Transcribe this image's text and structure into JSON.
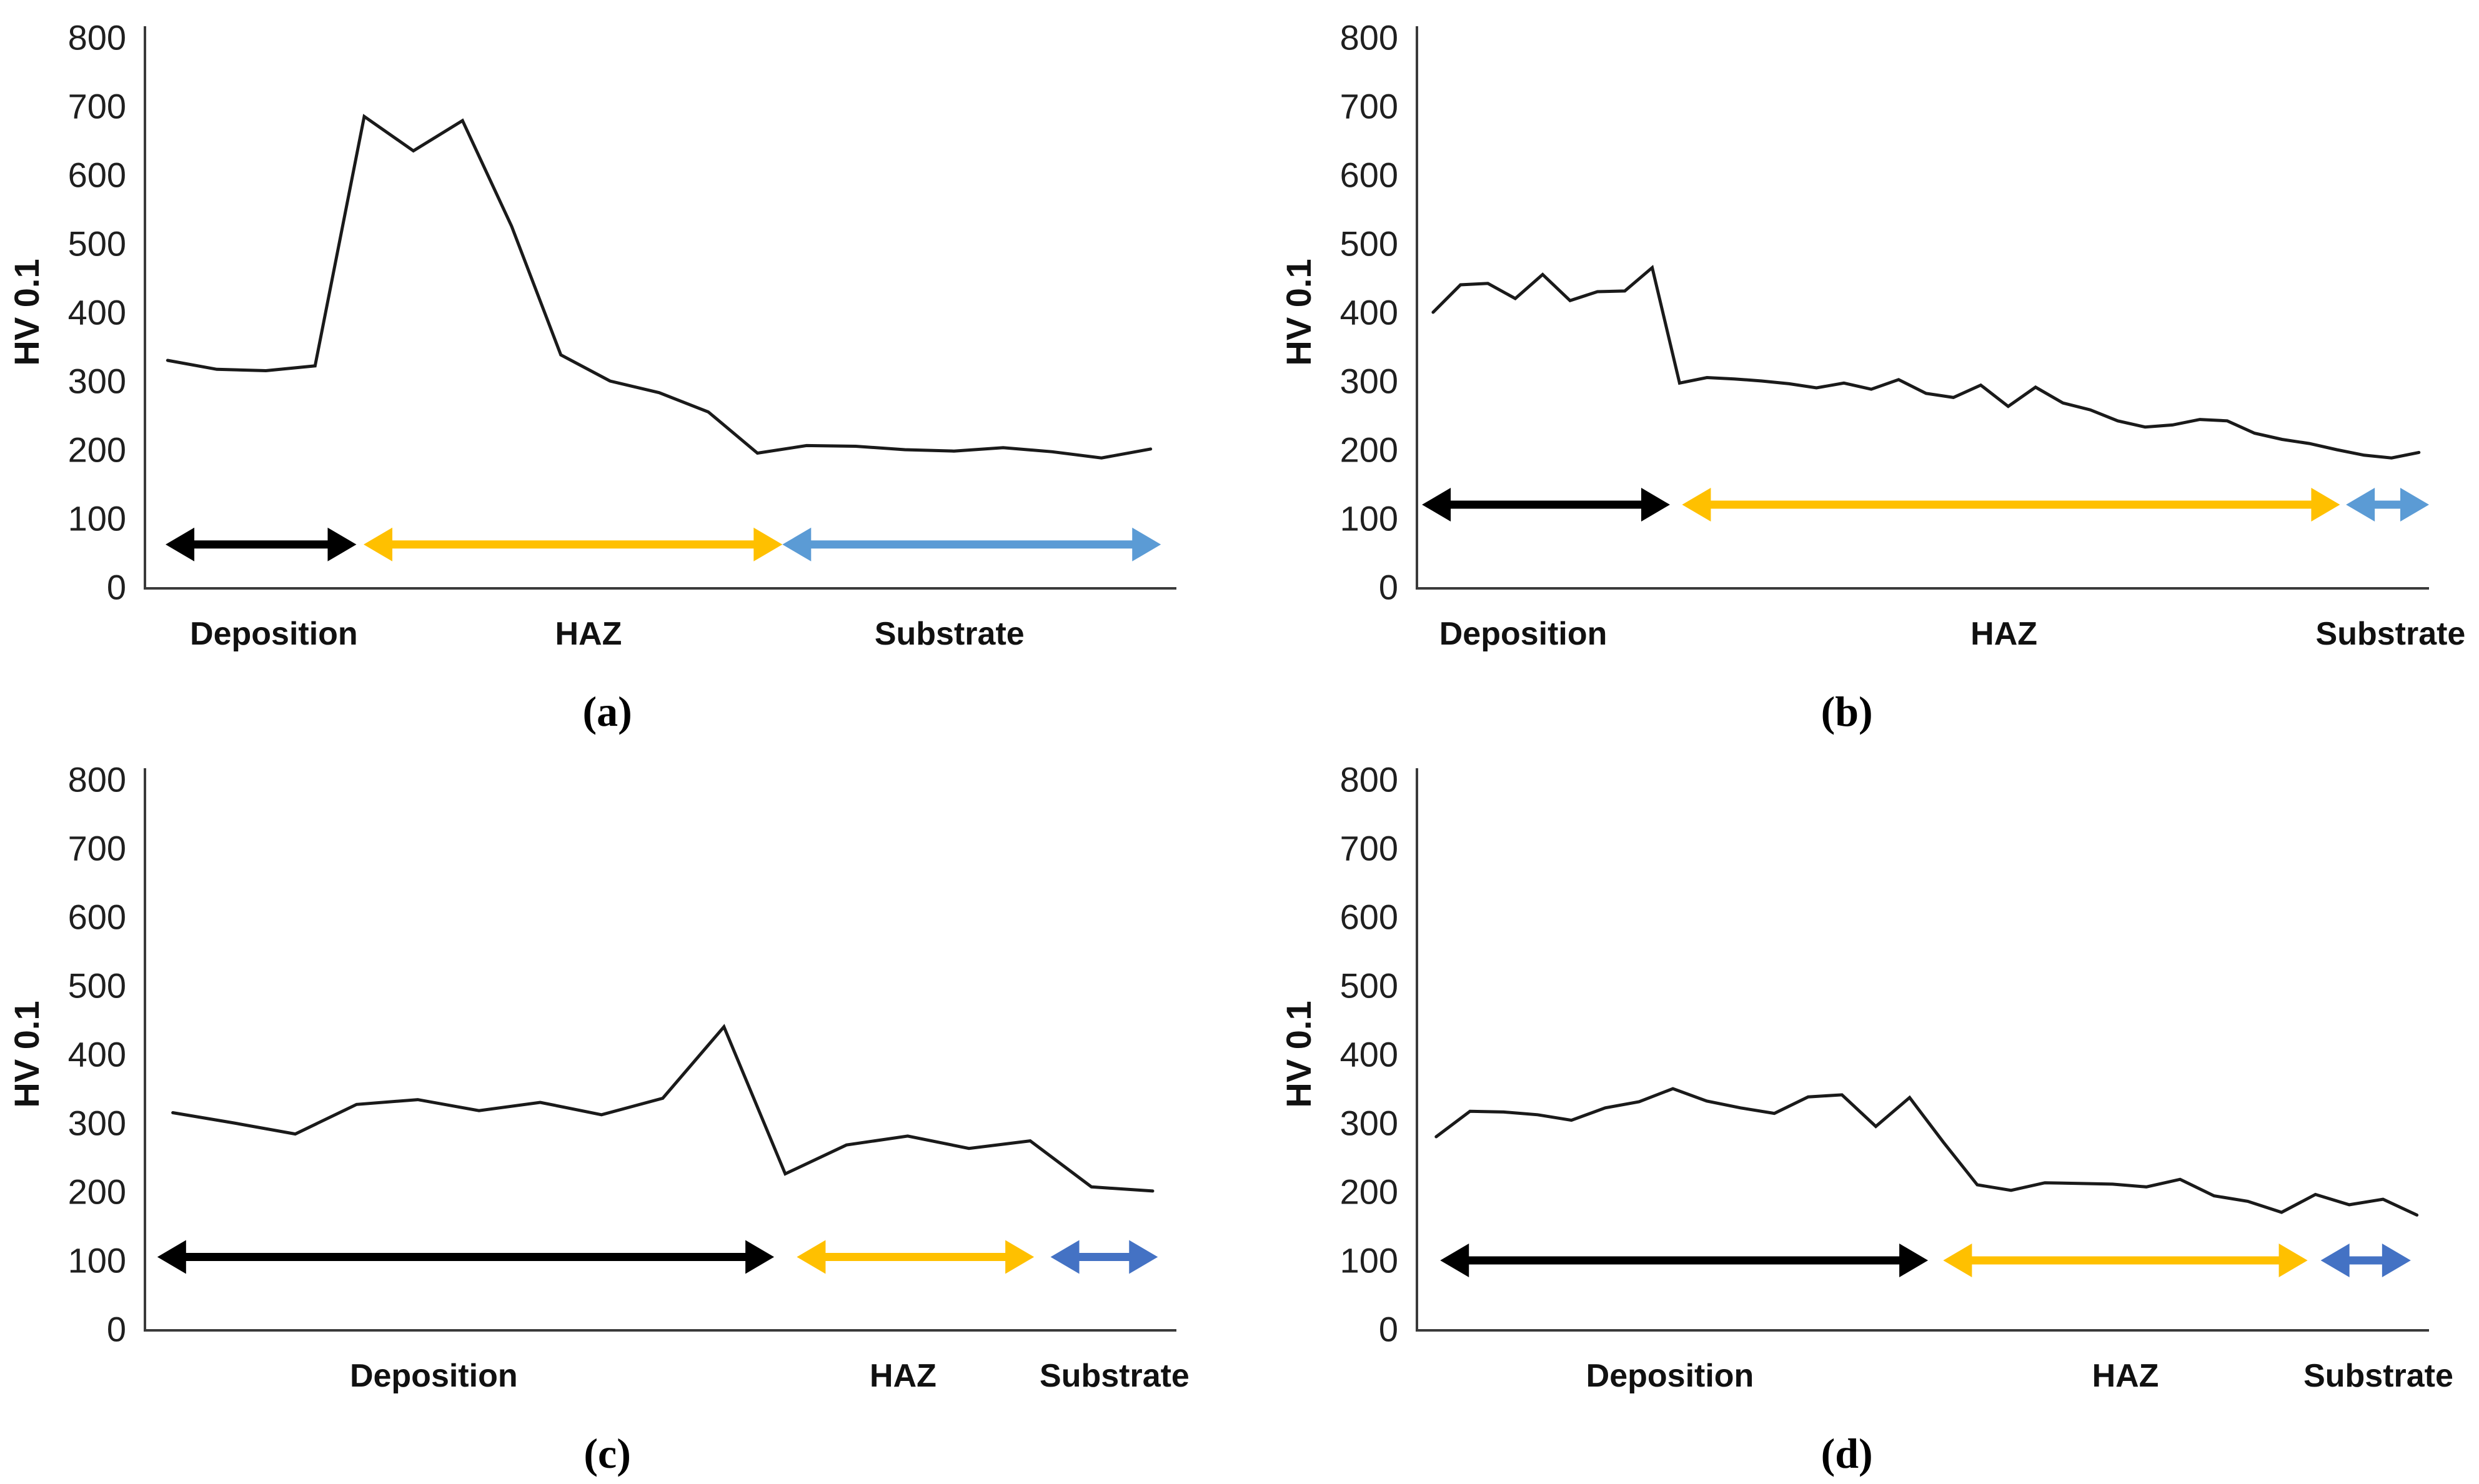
{
  "figure": {
    "background": "#FFFFFF",
    "ylabel": "HV 0.1",
    "zone_label_deposition": "Deposition",
    "zone_label_haz": "HAZ",
    "zone_label_substrate": "Substrate"
  },
  "chart_data": [
    {
      "panel_label": "(a)",
      "type": "line",
      "ylabel": "HV 0.1",
      "ylim": [
        0,
        800
      ],
      "yticks": [
        0,
        100,
        200,
        300,
        400,
        500,
        600,
        700,
        800
      ],
      "grid": false,
      "legend": "none",
      "line_color": "#1a1a1a",
      "x_start": 0.022,
      "x_end": 0.975,
      "values": [
        330,
        317,
        315,
        322,
        685,
        635,
        679,
        525,
        338,
        300,
        283,
        255,
        195,
        206,
        205,
        200,
        198,
        203,
        197,
        188,
        201
      ],
      "arrow_y": 62,
      "zones": [
        {
          "name": "deposition",
          "label": "Deposition",
          "color": "#000000",
          "from": 0.02,
          "to": 0.205,
          "label_at": 0.125
        },
        {
          "name": "haz",
          "label": "HAZ",
          "color": "#FFC000",
          "from": 0.212,
          "to": 0.618,
          "label_at": 0.43
        },
        {
          "name": "substrate",
          "label": "Substrate",
          "color": "#5B9BD5",
          "from": 0.618,
          "to": 0.985,
          "label_at": 0.78
        }
      ]
    },
    {
      "panel_label": "(b)",
      "type": "line",
      "ylabel": "HV 0.1",
      "ylim": [
        0,
        800
      ],
      "yticks": [
        0,
        100,
        200,
        300,
        400,
        500,
        600,
        700,
        800
      ],
      "grid": false,
      "legend": "none",
      "line_color": "#1a1a1a",
      "x_start": 0.016,
      "x_end": 0.99,
      "values": [
        400,
        440,
        442,
        420,
        455,
        417,
        430,
        431,
        465,
        297,
        305,
        303,
        300,
        296,
        290,
        297,
        288,
        302,
        282,
        276,
        294,
        263,
        291,
        268,
        258,
        242,
        233,
        236,
        244,
        242,
        224,
        215,
        209,
        200,
        192,
        188,
        196
      ],
      "arrow_y": 120,
      "zones": [
        {
          "name": "deposition",
          "label": "Deposition",
          "color": "#000000",
          "from": 0.005,
          "to": 0.25,
          "label_at": 0.105
        },
        {
          "name": "haz",
          "label": "HAZ",
          "color": "#FFC000",
          "from": 0.262,
          "to": 0.912,
          "label_at": 0.58
        },
        {
          "name": "substrate",
          "label": "Substrate",
          "color": "#5B9BD5",
          "from": 0.918,
          "to": 1.0,
          "label_at": 0.962
        }
      ]
    },
    {
      "panel_label": "(c)",
      "type": "line",
      "ylabel": "HV 0.1",
      "ylim": [
        0,
        800
      ],
      "yticks": [
        0,
        100,
        200,
        300,
        400,
        500,
        600,
        700,
        800
      ],
      "grid": false,
      "legend": "none",
      "line_color": "#1a1a1a",
      "x_start": 0.027,
      "x_end": 0.977,
      "values": [
        315,
        300,
        284,
        327,
        334,
        318,
        330,
        312,
        336,
        440,
        226,
        268,
        281,
        263,
        274,
        207,
        201
      ],
      "arrow_y": 105,
      "zones": [
        {
          "name": "deposition",
          "label": "Deposition",
          "color": "#000000",
          "from": 0.012,
          "to": 0.61,
          "label_at": 0.28
        },
        {
          "name": "haz",
          "label": "HAZ",
          "color": "#FFC000",
          "from": 0.632,
          "to": 0.862,
          "label_at": 0.735
        },
        {
          "name": "substrate",
          "label": "Substrate",
          "color": "#4472C4",
          "from": 0.878,
          "to": 0.982,
          "label_at": 0.94
        }
      ]
    },
    {
      "panel_label": "(d)",
      "type": "line",
      "ylabel": "HV 0.1",
      "ylim": [
        0,
        800
      ],
      "yticks": [
        0,
        100,
        200,
        300,
        400,
        500,
        600,
        700,
        800
      ],
      "grid": false,
      "legend": "none",
      "line_color": "#1a1a1a",
      "x_start": 0.019,
      "x_end": 0.988,
      "values": [
        280,
        317,
        316,
        312,
        304,
        322,
        331,
        350,
        332,
        322,
        314,
        338,
        341,
        295,
        337,
        272,
        210,
        202,
        213,
        212,
        211,
        207,
        218,
        194,
        186,
        170,
        196,
        181,
        189,
        166
      ],
      "arrow_y": 100,
      "zones": [
        {
          "name": "deposition",
          "label": "Deposition",
          "color": "#000000",
          "from": 0.023,
          "to": 0.505,
          "label_at": 0.25
        },
        {
          "name": "haz",
          "label": "HAZ",
          "color": "#FFC000",
          "from": 0.52,
          "to": 0.88,
          "label_at": 0.7
        },
        {
          "name": "substrate",
          "label": "Substrate",
          "color": "#4472C4",
          "from": 0.893,
          "to": 0.982,
          "label_at": 0.95
        }
      ]
    }
  ]
}
